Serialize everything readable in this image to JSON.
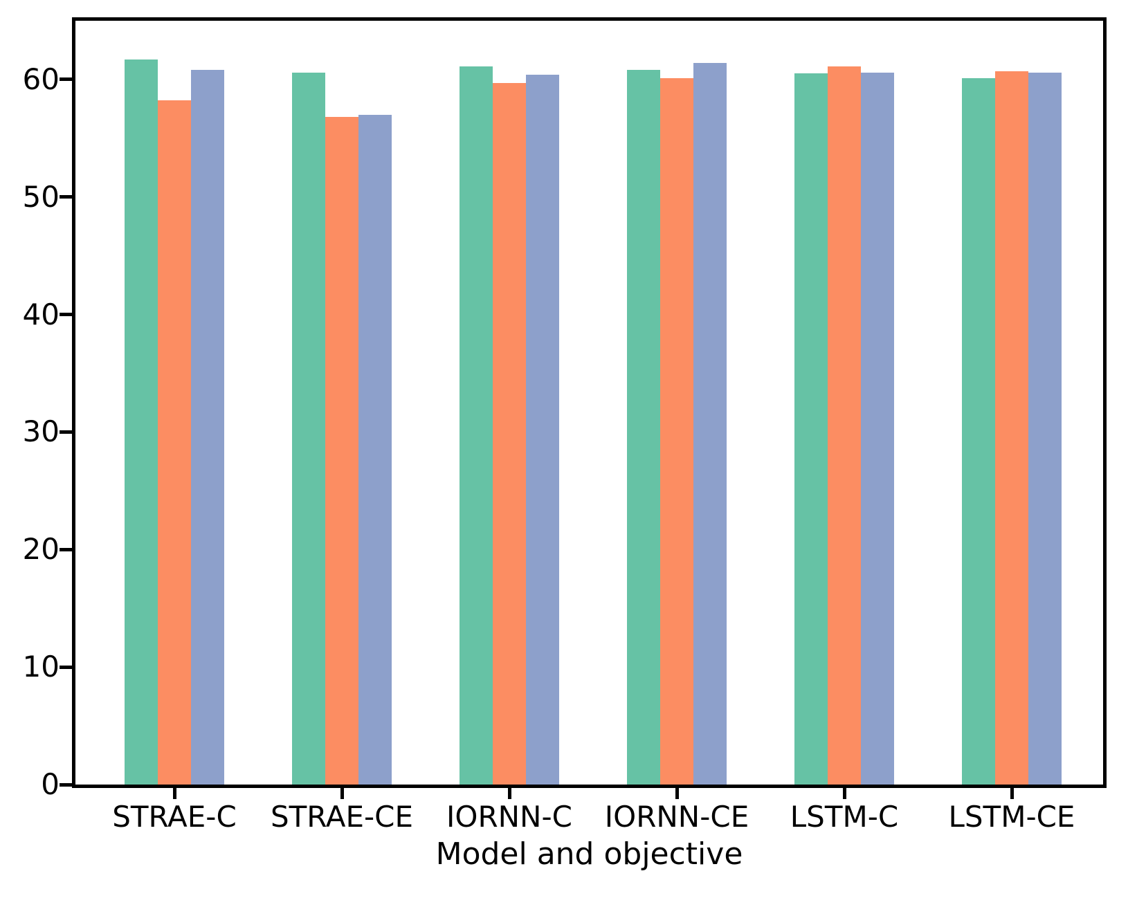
{
  "figure": {
    "background_color": "#ffffff",
    "spine_color": "#000000",
    "text_color": "#000000"
  },
  "chart_data": {
    "type": "bar",
    "title": "",
    "xlabel": "Model and objective",
    "ylabel": "",
    "categories": [
      "STRAE-C",
      "STRAE-CE",
      "IORNN-C",
      "IORNN-CE",
      "LSTM-C",
      "LSTM-CE"
    ],
    "series": [
      {
        "name": "green",
        "color": "#66c2a5",
        "values": [
          61.7,
          60.6,
          61.1,
          60.8,
          60.5,
          60.1
        ]
      },
      {
        "name": "orange",
        "color": "#fc8d62",
        "values": [
          58.2,
          56.8,
          59.7,
          60.1,
          61.1,
          60.7
        ]
      },
      {
        "name": "blue",
        "color": "#8da0cb",
        "values": [
          60.8,
          57.0,
          60.4,
          61.4,
          60.6,
          60.6
        ]
      }
    ],
    "yticks": [
      0,
      10,
      20,
      30,
      40,
      50,
      60
    ],
    "ylim": [
      0,
      65
    ],
    "grid": false,
    "legend_position": "none"
  }
}
